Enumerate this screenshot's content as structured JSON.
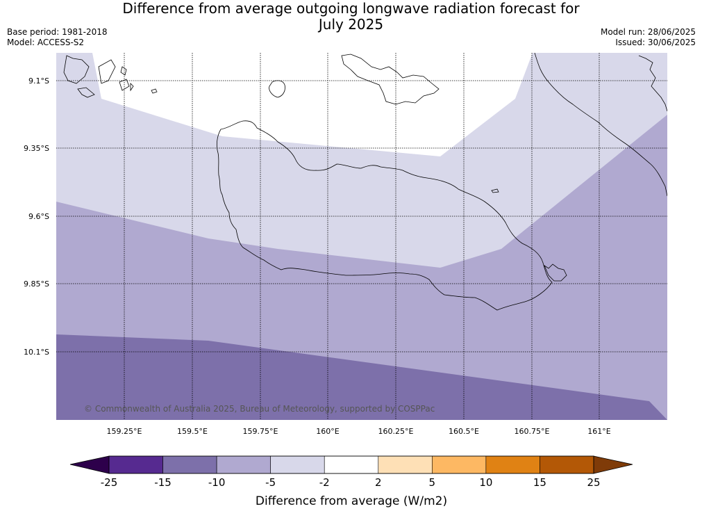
{
  "title_line1": "Difference from average outgoing longwave radiation forecast for",
  "title_line2": "July 2025",
  "base_period": "Base period: 1981-2018",
  "model": "Model: ACCESS-S2",
  "model_run": "Model run: 28/06/2025",
  "issued": "Issued: 30/06/2025",
  "copyright": "© Commonwealth of Australia 2025, Bureau of Meteorology, supported by COSPPac",
  "lat_labels": [
    "9.1°S",
    "9.35°S",
    "9.6°S",
    "9.85°S",
    "10.1°S"
  ],
  "lon_labels": [
    "159.25°E",
    "159.5°E",
    "159.75°E",
    "160°E",
    "160.25°E",
    "160.5°E",
    "160.75°E",
    "161°E"
  ],
  "colorbar": {
    "label": "Difference from average (W/m2)",
    "ticks": [
      "-25",
      "-15",
      "-10",
      "-5",
      "-2",
      "2",
      "5",
      "10",
      "15",
      "25"
    ],
    "colors": [
      "#562a90",
      "#7d70aa",
      "#b0a9d0",
      "#d8d8ea",
      "#ffffff",
      "#fee0b6",
      "#fdb863",
      "#e08214",
      "#b35806"
    ],
    "under_color": "#2d004b",
    "over_color": "#7f3b08"
  },
  "map_layers": {
    "band_neg2_to_2": "#ffffff",
    "band_neg5_to_neg2": "#d8d8ea",
    "band_neg10_to_neg5": "#b0a9d0",
    "band_neg15_to_neg10": "#7d70aa"
  }
}
